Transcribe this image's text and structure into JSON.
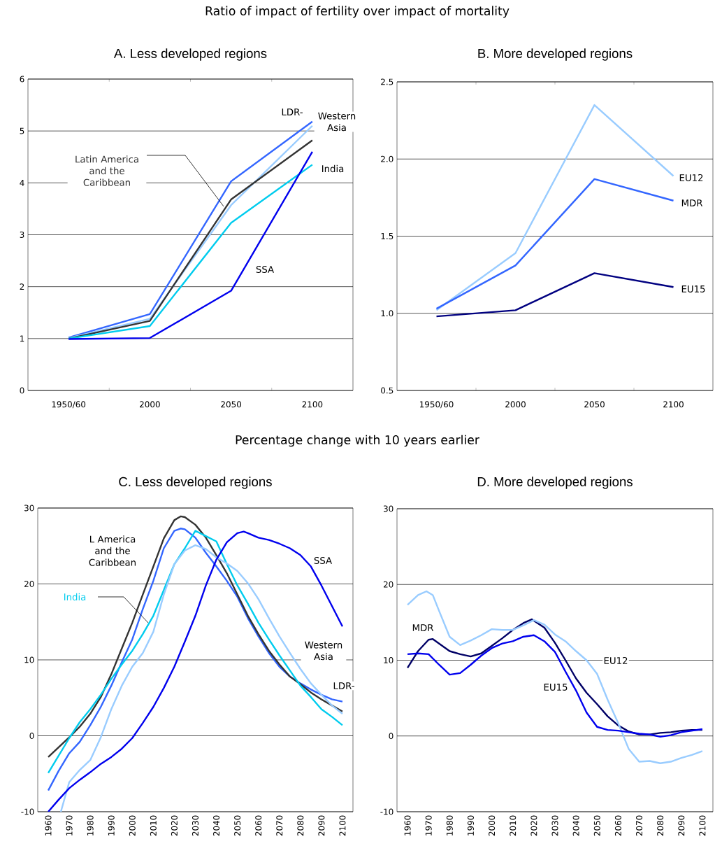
{
  "chart_data": [
    {
      "type": "line",
      "title": "Ratio of impact of fertility over impact of mortality",
      "subtitle": "A.  Less developed regions",
      "categories": [
        "1950/60",
        "2000",
        "2050",
        "2100"
      ],
      "ylim": [
        0,
        6
      ],
      "yticks": [
        0,
        1,
        2,
        3,
        4,
        5,
        6
      ],
      "grid": "y",
      "marker": "none",
      "line_style": "solid",
      "series": [
        {
          "name": "LDR-",
          "color": "#3366ff",
          "values": [
            1.02,
            1.47,
            4.03,
            5.18
          ]
        },
        {
          "name": "Western Asia",
          "color": "#99ccff",
          "values": [
            1.01,
            1.38,
            3.57,
            5.1
          ]
        },
        {
          "name": "Latin America and the Caribbean",
          "color": "#333333",
          "values": [
            1.0,
            1.34,
            3.68,
            4.82
          ]
        },
        {
          "name": "India",
          "color": "#00ccee",
          "values": [
            1.0,
            1.24,
            3.23,
            4.35
          ]
        },
        {
          "name": "SSA",
          "color": "#0000ee",
          "values": [
            0.99,
            1.01,
            1.92,
            4.6
          ]
        }
      ]
    },
    {
      "type": "line",
      "title": "B.  More developed regions",
      "categories": [
        "1950/60",
        "2000",
        "2050",
        "2100"
      ],
      "ylim": [
        0.5,
        2.5
      ],
      "yticks": [
        0.5,
        {
          "value": 1,
          "label": "1.0"
        },
        1.5,
        {
          "value": 2,
          "label": "2.0"
        },
        2.5
      ],
      "grid": "y",
      "marker": "none",
      "line_style": "solid",
      "series": [
        {
          "name": "EU12",
          "color": "#99ccff",
          "values": [
            1.02,
            1.39,
            2.35,
            1.89
          ]
        },
        {
          "name": "MDR",
          "color": "#3366ff",
          "values": [
            1.03,
            1.31,
            1.87,
            1.73
          ]
        },
        {
          "name": "EU15",
          "color": "#000080",
          "values": [
            0.98,
            1.02,
            1.26,
            1.17
          ]
        }
      ]
    },
    {
      "type": "line",
      "title": "Percentage change with 10 years earlier",
      "subtitle": "C.  Less developed regions",
      "xlim": [
        1955,
        2105
      ],
      "xticks": [
        1960,
        1970,
        1980,
        1990,
        2000,
        2010,
        2020,
        2030,
        2040,
        2050,
        2060,
        2070,
        2080,
        2090,
        2100
      ],
      "ylim": [
        -10,
        30
      ],
      "yticks": [
        -10,
        0,
        10,
        20,
        30
      ],
      "grid": "y",
      "marker": "none",
      "line_style": "solid",
      "series": [
        {
          "name": "LDR-",
          "color": "#3366ff",
          "x": [
            1960,
            1965,
            1970,
            1975,
            1980,
            1985,
            1990,
            1995,
            2000,
            2005,
            2010,
            2015,
            2020,
            2023,
            2025,
            2030,
            2035,
            2040,
            2045,
            2050,
            2055,
            2060,
            2065,
            2070,
            2075,
            2080,
            2085,
            2090,
            2095,
            2100
          ],
          "values": [
            -7.2,
            -4.6,
            -2.3,
            -0.8,
            1.4,
            3.8,
            6.6,
            9.7,
            12.7,
            16.7,
            20.4,
            24.7,
            27.0,
            27.3,
            27.2,
            26.1,
            24.1,
            22.3,
            20.4,
            18.3,
            15.5,
            13.1,
            10.9,
            9.1,
            7.8,
            6.9,
            6.1,
            5.4,
            4.8,
            4.5
          ]
        },
        {
          "name": "L America and the Caribbean",
          "color": "#333333",
          "x": [
            1960,
            1970,
            1975,
            1980,
            1985,
            1990,
            1995,
            2000,
            2005,
            2010,
            2015,
            2020,
            2023,
            2025,
            2030,
            2035,
            2040,
            2045,
            2050,
            2055,
            2060,
            2065,
            2070,
            2075,
            2080,
            2085,
            2090,
            2095,
            2100
          ],
          "values": [
            -2.8,
            -0.2,
            1.2,
            2.9,
            5.1,
            8.1,
            11.5,
            14.9,
            18.6,
            22.3,
            26.0,
            28.4,
            28.9,
            28.8,
            27.8,
            26.1,
            23.8,
            21.4,
            18.6,
            15.8,
            13.4,
            11.2,
            9.4,
            7.8,
            6.8,
            5.7,
            4.8,
            4.0,
            3.2
          ]
        },
        {
          "name": "India",
          "color": "#00ccee",
          "x": [
            1960,
            1965,
            1970,
            1975,
            1980,
            1985,
            1990,
            1995,
            2000,
            2005,
            2010,
            2015,
            2020,
            2025,
            2030,
            2035,
            2040,
            2045,
            2050,
            2055,
            2060,
            2065,
            2070,
            2075,
            2080,
            2085,
            2090,
            2095,
            2100
          ],
          "values": [
            -4.9,
            -2.6,
            -0.3,
            1.8,
            3.5,
            5.4,
            7.5,
            9.4,
            11.2,
            13.4,
            15.8,
            19.2,
            22.6,
            24.7,
            27.0,
            26.3,
            25.6,
            22.6,
            19.8,
            17.4,
            14.9,
            12.7,
            10.6,
            8.6,
            6.6,
            5.1,
            3.5,
            2.5,
            1.4
          ]
        },
        {
          "name": "Western Asia",
          "color": "#99ccff",
          "x": [
            1966,
            1970,
            1975,
            1980,
            1985,
            1990,
            1995,
            2000,
            2005,
            2010,
            2015,
            2020,
            2025,
            2030,
            2035,
            2040,
            2045,
            2050,
            2055,
            2060,
            2065,
            2070,
            2075,
            2080,
            2085,
            2090,
            2095,
            2100
          ],
          "values": [
            -10,
            -6.1,
            -4.5,
            -3.2,
            -0.2,
            3.5,
            6.6,
            9.1,
            10.9,
            13.7,
            18.6,
            22.6,
            24.4,
            25.1,
            24.6,
            23.5,
            22.7,
            21.7,
            20.1,
            18.0,
            15.5,
            13.1,
            10.9,
            8.8,
            6.9,
            5.4,
            4.0,
            2.9
          ]
        },
        {
          "name": "SSA",
          "color": "#0000ee",
          "x": [
            1960,
            1965,
            1970,
            1975,
            1980,
            1985,
            1990,
            1995,
            2000,
            2005,
            2010,
            2015,
            2020,
            2025,
            2030,
            2035,
            2040,
            2045,
            2050,
            2053,
            2055,
            2060,
            2065,
            2070,
            2075,
            2080,
            2085,
            2090,
            2095,
            2100
          ],
          "values": [
            -10,
            -8.4,
            -6.9,
            -5.8,
            -4.8,
            -3.7,
            -2.8,
            -1.7,
            -0.3,
            1.7,
            3.8,
            6.3,
            9.1,
            12.4,
            15.8,
            19.8,
            23.2,
            25.5,
            26.7,
            26.9,
            26.7,
            26.1,
            25.8,
            25.3,
            24.7,
            23.8,
            22.3,
            19.8,
            17.1,
            14.4
          ]
        }
      ]
    },
    {
      "type": "line",
      "title": "D.  More developed regions",
      "xlim": [
        1955,
        2105
      ],
      "xticks": [
        1960,
        1970,
        1980,
        1990,
        2000,
        2010,
        2020,
        2030,
        2040,
        2050,
        2060,
        2070,
        2080,
        2090,
        2100
      ],
      "ylim": [
        -10,
        30
      ],
      "yticks": [
        -10,
        0,
        10,
        20,
        30
      ],
      "grid": "y",
      "marker": "none",
      "line_style": "solid",
      "series": [
        {
          "name": "MDR",
          "color": "#000066",
          "x": [
            1960,
            1965,
            1970,
            1972,
            1975,
            1980,
            1985,
            1990,
            1995,
            2000,
            2005,
            2010,
            2015,
            2019,
            2025,
            2030,
            2035,
            2040,
            2045,
            2050,
            2055,
            2060,
            2065,
            2070,
            2075,
            2080,
            2085,
            2090,
            2095,
            2100
          ],
          "values": [
            9.0,
            11.2,
            12.7,
            12.8,
            12.2,
            11.2,
            10.8,
            10.5,
            10.9,
            11.9,
            12.9,
            14.0,
            14.9,
            15.4,
            14.3,
            12.3,
            10.0,
            7.6,
            5.7,
            4.2,
            2.6,
            1.4,
            0.6,
            0.2,
            0.2,
            0.4,
            0.5,
            0.7,
            0.8,
            0.8
          ]
        },
        {
          "name": "EU12",
          "color": "#99ccff",
          "x": [
            1960,
            1965,
            1969,
            1972,
            1975,
            1980,
            1985,
            1990,
            1995,
            2000,
            2005,
            2010,
            2015,
            2020,
            2025,
            2030,
            2035,
            2040,
            2045,
            2050,
            2055,
            2060,
            2065,
            2070,
            2075,
            2080,
            2085,
            2090,
            2095,
            2100
          ],
          "values": [
            17.3,
            18.6,
            19.1,
            18.6,
            16.5,
            13.1,
            12.0,
            12.6,
            13.3,
            14.1,
            14.0,
            14.0,
            14.6,
            15.3,
            14.7,
            13.4,
            12.5,
            11.2,
            10.0,
            8.2,
            4.8,
            1.7,
            -1.7,
            -3.4,
            -3.3,
            -3.6,
            -3.4,
            -2.9,
            -2.5,
            -2.0
          ]
        },
        {
          "name": "EU15",
          "color": "#0000ee",
          "x": [
            1960,
            1965,
            1970,
            1975,
            1980,
            1985,
            1990,
            1995,
            2000,
            2005,
            2010,
            2015,
            2020,
            2025,
            2030,
            2035,
            2040,
            2045,
            2050,
            2055,
            2060,
            2065,
            2070,
            2075,
            2080,
            2085,
            2090,
            2095,
            2100
          ],
          "values": [
            10.8,
            10.9,
            10.8,
            9.4,
            8.1,
            8.3,
            9.4,
            10.6,
            11.6,
            12.2,
            12.5,
            13.1,
            13.3,
            12.5,
            11.1,
            8.5,
            6.0,
            3.1,
            1.2,
            0.8,
            0.7,
            0.5,
            0.3,
            0.2,
            -0.1,
            0.1,
            0.5,
            0.7,
            0.9
          ]
        }
      ]
    }
  ]
}
